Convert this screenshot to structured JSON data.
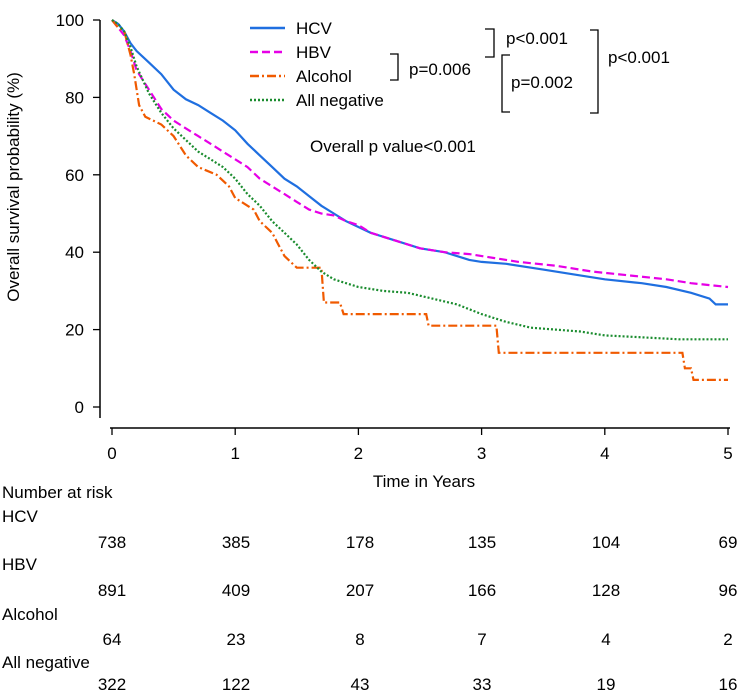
{
  "chart_data": {
    "type": "line",
    "title": "",
    "xlabel": "Time in Years",
    "ylabel": "Overall survival probability (%)",
    "xlim": [
      0,
      5
    ],
    "ylim": [
      0,
      100
    ],
    "xticks": [
      "0",
      "1",
      "2",
      "3",
      "4",
      "5"
    ],
    "yticks": [
      "0",
      "20",
      "40",
      "60",
      "80",
      "100"
    ],
    "legend_position": "top-center",
    "series": [
      {
        "name": "HCV",
        "color": "#1f6fe0",
        "style": "solid",
        "points": [
          [
            0,
            100
          ],
          [
            0.05,
            99
          ],
          [
            0.1,
            97
          ],
          [
            0.15,
            94
          ],
          [
            0.2,
            92
          ],
          [
            0.3,
            89
          ],
          [
            0.4,
            86
          ],
          [
            0.5,
            82
          ],
          [
            0.6,
            79.5
          ],
          [
            0.7,
            78
          ],
          [
            0.8,
            76
          ],
          [
            0.9,
            74
          ],
          [
            1.0,
            71.5
          ],
          [
            1.1,
            68
          ],
          [
            1.2,
            65
          ],
          [
            1.3,
            62
          ],
          [
            1.4,
            59
          ],
          [
            1.5,
            57
          ],
          [
            1.6,
            54.5
          ],
          [
            1.7,
            52
          ],
          [
            1.8,
            50
          ],
          [
            1.9,
            48
          ],
          [
            2.0,
            46.5
          ],
          [
            2.1,
            45
          ],
          [
            2.3,
            43
          ],
          [
            2.5,
            41
          ],
          [
            2.7,
            40
          ],
          [
            2.9,
            38
          ],
          [
            3.0,
            37.5
          ],
          [
            3.2,
            37
          ],
          [
            3.5,
            35.5
          ],
          [
            3.8,
            34
          ],
          [
            4.0,
            33
          ],
          [
            4.3,
            32
          ],
          [
            4.5,
            31
          ],
          [
            4.7,
            29.5
          ],
          [
            4.85,
            28
          ],
          [
            4.9,
            26.5
          ],
          [
            5.0,
            26.5
          ]
        ]
      },
      {
        "name": "HBV",
        "color": "#e600e6",
        "style": "dashed",
        "points": [
          [
            0,
            100
          ],
          [
            0.05,
            98
          ],
          [
            0.1,
            96
          ],
          [
            0.15,
            92
          ],
          [
            0.2,
            87
          ],
          [
            0.3,
            82
          ],
          [
            0.4,
            77
          ],
          [
            0.5,
            74
          ],
          [
            0.6,
            72
          ],
          [
            0.7,
            70
          ],
          [
            0.8,
            68
          ],
          [
            0.9,
            66
          ],
          [
            1.0,
            64
          ],
          [
            1.1,
            62
          ],
          [
            1.2,
            59
          ],
          [
            1.3,
            57
          ],
          [
            1.4,
            55
          ],
          [
            1.5,
            53
          ],
          [
            1.6,
            51
          ],
          [
            1.7,
            50
          ],
          [
            1.8,
            49.5
          ],
          [
            1.9,
            48
          ],
          [
            2.0,
            47
          ],
          [
            2.1,
            45
          ],
          [
            2.3,
            43
          ],
          [
            2.5,
            41
          ],
          [
            2.7,
            40
          ],
          [
            2.9,
            39.5
          ],
          [
            3.1,
            38.5
          ],
          [
            3.3,
            37.5
          ],
          [
            3.6,
            36.5
          ],
          [
            3.9,
            35
          ],
          [
            4.2,
            34
          ],
          [
            4.5,
            33
          ],
          [
            4.7,
            32
          ],
          [
            5.0,
            31
          ]
        ]
      },
      {
        "name": "Alcohol",
        "color": "#f05a00",
        "style": "dashdot",
        "points": [
          [
            0,
            100
          ],
          [
            0.05,
            98
          ],
          [
            0.1,
            97
          ],
          [
            0.15,
            91
          ],
          [
            0.18,
            86
          ],
          [
            0.22,
            78
          ],
          [
            0.27,
            75
          ],
          [
            0.4,
            73
          ],
          [
            0.5,
            70
          ],
          [
            0.6,
            65
          ],
          [
            0.7,
            62
          ],
          [
            0.85,
            60
          ],
          [
            0.95,
            57
          ],
          [
            1.0,
            54
          ],
          [
            1.15,
            51
          ],
          [
            1.2,
            48
          ],
          [
            1.3,
            45
          ],
          [
            1.35,
            42
          ],
          [
            1.4,
            39
          ],
          [
            1.5,
            36
          ],
          [
            1.7,
            36
          ],
          [
            1.72,
            27
          ],
          [
            1.85,
            27
          ],
          [
            1.88,
            24
          ],
          [
            2.55,
            24
          ],
          [
            2.57,
            21
          ],
          [
            3.12,
            21
          ],
          [
            3.14,
            14
          ],
          [
            4.63,
            14
          ],
          [
            4.65,
            10
          ],
          [
            4.7,
            10
          ],
          [
            4.72,
            7
          ],
          [
            5.0,
            7
          ]
        ]
      },
      {
        "name": "All negative",
        "color": "#1a8c2e",
        "style": "dotted",
        "points": [
          [
            0,
            100
          ],
          [
            0.05,
            99
          ],
          [
            0.1,
            97
          ],
          [
            0.15,
            93
          ],
          [
            0.2,
            88
          ],
          [
            0.3,
            81
          ],
          [
            0.4,
            76
          ],
          [
            0.5,
            72
          ],
          [
            0.6,
            69
          ],
          [
            0.7,
            66
          ],
          [
            0.8,
            64
          ],
          [
            0.9,
            62
          ],
          [
            1.0,
            59
          ],
          [
            1.1,
            55
          ],
          [
            1.2,
            52
          ],
          [
            1.3,
            48
          ],
          [
            1.4,
            45
          ],
          [
            1.5,
            42
          ],
          [
            1.6,
            38
          ],
          [
            1.7,
            35
          ],
          [
            1.8,
            33
          ],
          [
            1.9,
            32
          ],
          [
            2.0,
            31
          ],
          [
            2.2,
            30
          ],
          [
            2.4,
            29.5
          ],
          [
            2.6,
            28
          ],
          [
            2.8,
            26.5
          ],
          [
            3.0,
            24
          ],
          [
            3.2,
            22
          ],
          [
            3.4,
            20.5
          ],
          [
            3.6,
            20
          ],
          [
            3.8,
            19.5
          ],
          [
            4.0,
            18.5
          ],
          [
            4.3,
            18
          ],
          [
            4.6,
            17.5
          ],
          [
            5.0,
            17.5
          ]
        ]
      }
    ],
    "annotations": {
      "p_hbv_alcohol": "p=0.006",
      "p_hcv_hbv": "p<0.001",
      "p_hbv_negative": "p=0.002",
      "p_hcv_negative": "p<0.001",
      "overall": "Overall p value<0.001"
    },
    "risk_table": {
      "title": "Number at risk",
      "rows": [
        {
          "label": "HCV",
          "values": [
            "738",
            "385",
            "178",
            "135",
            "104",
            "69"
          ]
        },
        {
          "label": "HBV",
          "values": [
            "891",
            "409",
            "207",
            "166",
            "128",
            "96"
          ]
        },
        {
          "label": "Alcohol",
          "values": [
            "64",
            "23",
            "8",
            "7",
            "4",
            "2"
          ]
        },
        {
          "label": "All negative",
          "values": [
            "322",
            "122",
            "43",
            "33",
            "19",
            "16"
          ]
        }
      ]
    }
  }
}
